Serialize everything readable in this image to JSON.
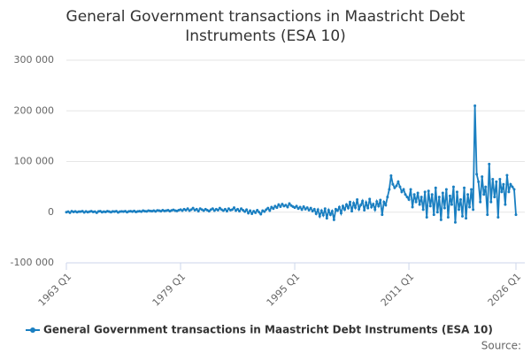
{
  "chart_data": {
    "type": "line",
    "title": "General Government transactions in Maastricht Debt Instruments (ESA 10)",
    "source": "Source:",
    "xlim": [
      1963,
      2026
    ],
    "xticks": [
      {
        "value": 1963,
        "label": "1963 Q1"
      },
      {
        "value": 1979,
        "label": "1979 Q1"
      },
      {
        "value": 1995,
        "label": "1995 Q1"
      },
      {
        "value": 2011,
        "label": "2011 Q1"
      },
      {
        "value": 2026,
        "label": "2026 Q1"
      }
    ],
    "ylim": [
      -100000,
      300000
    ],
    "yticks": [
      {
        "value": -100000,
        "label": "-100 000"
      },
      0,
      {
        "value": 100000,
        "label": "100 000"
      },
      {
        "value": 200000,
        "label": "200 000"
      },
      {
        "value": 300000,
        "label": "300 000"
      }
    ],
    "grid": true,
    "x": [
      1963,
      1963.25,
      1963.5,
      1963.75,
      1964,
      1964.25,
      1964.5,
      1964.75,
      1965,
      1965.25,
      1965.5,
      1965.75,
      1966,
      1966.25,
      1966.5,
      1966.75,
      1967,
      1967.25,
      1967.5,
      1967.75,
      1968,
      1968.25,
      1968.5,
      1968.75,
      1969,
      1969.25,
      1969.5,
      1969.75,
      1970,
      1970.25,
      1970.5,
      1970.75,
      1971,
      1971.25,
      1971.5,
      1971.75,
      1972,
      1972.25,
      1972.5,
      1972.75,
      1973,
      1973.25,
      1973.5,
      1973.75,
      1974,
      1974.25,
      1974.5,
      1974.75,
      1975,
      1975.25,
      1975.5,
      1975.75,
      1976,
      1976.25,
      1976.5,
      1976.75,
      1977,
      1977.25,
      1977.5,
      1977.75,
      1978,
      1978.25,
      1978.5,
      1978.75,
      1979,
      1979.25,
      1979.5,
      1979.75,
      1980,
      1980.25,
      1980.5,
      1980.75,
      1981,
      1981.25,
      1981.5,
      1981.75,
      1982,
      1982.25,
      1982.5,
      1982.75,
      1983,
      1983.25,
      1983.5,
      1983.75,
      1984,
      1984.25,
      1984.5,
      1984.75,
      1985,
      1985.25,
      1985.5,
      1985.75,
      1986,
      1986.25,
      1986.5,
      1986.75,
      1987,
      1987.25,
      1987.5,
      1987.75,
      1988,
      1988.25,
      1988.5,
      1988.75,
      1989,
      1989.25,
      1989.5,
      1989.75,
      1990,
      1990.25,
      1990.5,
      1990.75,
      1991,
      1991.25,
      1991.5,
      1991.75,
      1992,
      1992.25,
      1992.5,
      1992.75,
      1993,
      1993.25,
      1993.5,
      1993.75,
      1994,
      1994.25,
      1994.5,
      1994.75,
      1995,
      1995.25,
      1995.5,
      1995.75,
      1996,
      1996.25,
      1996.5,
      1996.75,
      1997,
      1997.25,
      1997.5,
      1997.75,
      1998,
      1998.25,
      1998.5,
      1998.75,
      1999,
      1999.25,
      1999.5,
      1999.75,
      2000,
      2000.25,
      2000.5,
      2000.75,
      2001,
      2001.25,
      2001.5,
      2001.75,
      2002,
      2002.25,
      2002.5,
      2002.75,
      2003,
      2003.25,
      2003.5,
      2003.75,
      2004,
      2004.25,
      2004.5,
      2004.75,
      2005,
      2005.25,
      2005.5,
      2005.75,
      2006,
      2006.25,
      2006.5,
      2006.75,
      2007,
      2007.25,
      2007.5,
      2007.75,
      2008,
      2008.25,
      2008.5,
      2008.75,
      2009,
      2009.25,
      2009.5,
      2009.75,
      2010,
      2010.25,
      2010.5,
      2010.75,
      2011,
      2011.25,
      2011.5,
      2011.75,
      2012,
      2012.25,
      2012.5,
      2012.75,
      2013,
      2013.25,
      2013.5,
      2013.75,
      2014,
      2014.25,
      2014.5,
      2014.75,
      2015,
      2015.25,
      2015.5,
      2015.75,
      2016,
      2016.25,
      2016.5,
      2016.75,
      2017,
      2017.25,
      2017.5,
      2017.75,
      2018,
      2018.25,
      2018.5,
      2018.75,
      2019,
      2019.25,
      2019.5,
      2019.75,
      2020,
      2020.25,
      2020.5,
      2020.75,
      2021,
      2021.25,
      2021.5,
      2021.75,
      2022,
      2022.25,
      2022.5,
      2022.75,
      2023,
      2023.25,
      2023.5,
      2023.75,
      2024,
      2024.25,
      2024.5,
      2024.75,
      2025,
      2025.25,
      2025.5,
      2025.75,
      2026
    ],
    "series": [
      {
        "name": "General Government transactions in Maastricht Debt Instruments (ESA 10)",
        "color": "#1a7fc1",
        "values": [
          0,
          1000,
          -1000,
          2000,
          500,
          1500,
          0,
          1000,
          1000,
          2000,
          -500,
          1500,
          0,
          1000,
          2000,
          500,
          1000,
          -1000,
          1500,
          2000,
          0,
          1000,
          500,
          2000,
          1000,
          0,
          1500,
          1000,
          2000,
          -500,
          1000,
          1500,
          1000,
          2000,
          0,
          1500,
          2000,
          1000,
          2500,
          500,
          1500,
          2000,
          1000,
          3000,
          2000,
          1500,
          3000,
          2500,
          2000,
          3000,
          1500,
          3500,
          3000,
          2000,
          4000,
          2500,
          3000,
          4000,
          2000,
          3500,
          4500,
          3000,
          2500,
          4000,
          5000,
          3000,
          6000,
          4000,
          7000,
          3000,
          5000,
          8000,
          4000,
          6000,
          2000,
          7000,
          5000,
          3000,
          6000,
          4000,
          2000,
          5000,
          7000,
          3000,
          6000,
          4000,
          8000,
          5000,
          3000,
          6000,
          2000,
          7000,
          4000,
          5000,
          9000,
          3000,
          6000,
          2000,
          7000,
          4000,
          1000,
          5000,
          -2000,
          3000,
          -3000,
          2000,
          -1000,
          4000,
          0,
          -4000,
          3000,
          1000,
          5000,
          8000,
          3000,
          10000,
          7000,
          12000,
          9000,
          15000,
          11000,
          16000,
          12000,
          14000,
          10000,
          17000,
          13000,
          11000,
          9000,
          12000,
          7000,
          10000,
          5000,
          11000,
          6000,
          9000,
          4000,
          8000,
          2000,
          6000,
          -3000,
          5000,
          -8000,
          3000,
          -6000,
          7000,
          -12000,
          4000,
          -5000,
          2000,
          -15000,
          6000,
          3000,
          10000,
          -2000,
          12000,
          5000,
          15000,
          8000,
          20000,
          2000,
          18000,
          9000,
          25000,
          6000,
          14000,
          22000,
          4000,
          19000,
          8000,
          26000,
          10000,
          16000,
          5000,
          21000,
          12000,
          24000,
          -5000,
          20000,
          14000,
          30000,
          45000,
          72000,
          55000,
          48000,
          52000,
          60000,
          50000,
          40000,
          45000,
          35000,
          30000,
          25000,
          45000,
          10000,
          35000,
          20000,
          38000,
          15000,
          30000,
          5000,
          40000,
          -10000,
          42000,
          12000,
          35000,
          -5000,
          48000,
          0,
          30000,
          -15000,
          38000,
          8000,
          45000,
          -10000,
          32000,
          15000,
          50000,
          -20000,
          40000,
          5000,
          25000,
          -8000,
          48000,
          -12000,
          35000,
          10000,
          45000,
          5000,
          210000,
          75000,
          60000,
          20000,
          70000,
          35000,
          50000,
          -5000,
          95000,
          20000,
          65000,
          30000,
          60000,
          -10000,
          65000,
          40000,
          55000,
          15000,
          73000,
          40000,
          55000,
          50000,
          45000,
          -5000
        ]
      }
    ]
  }
}
